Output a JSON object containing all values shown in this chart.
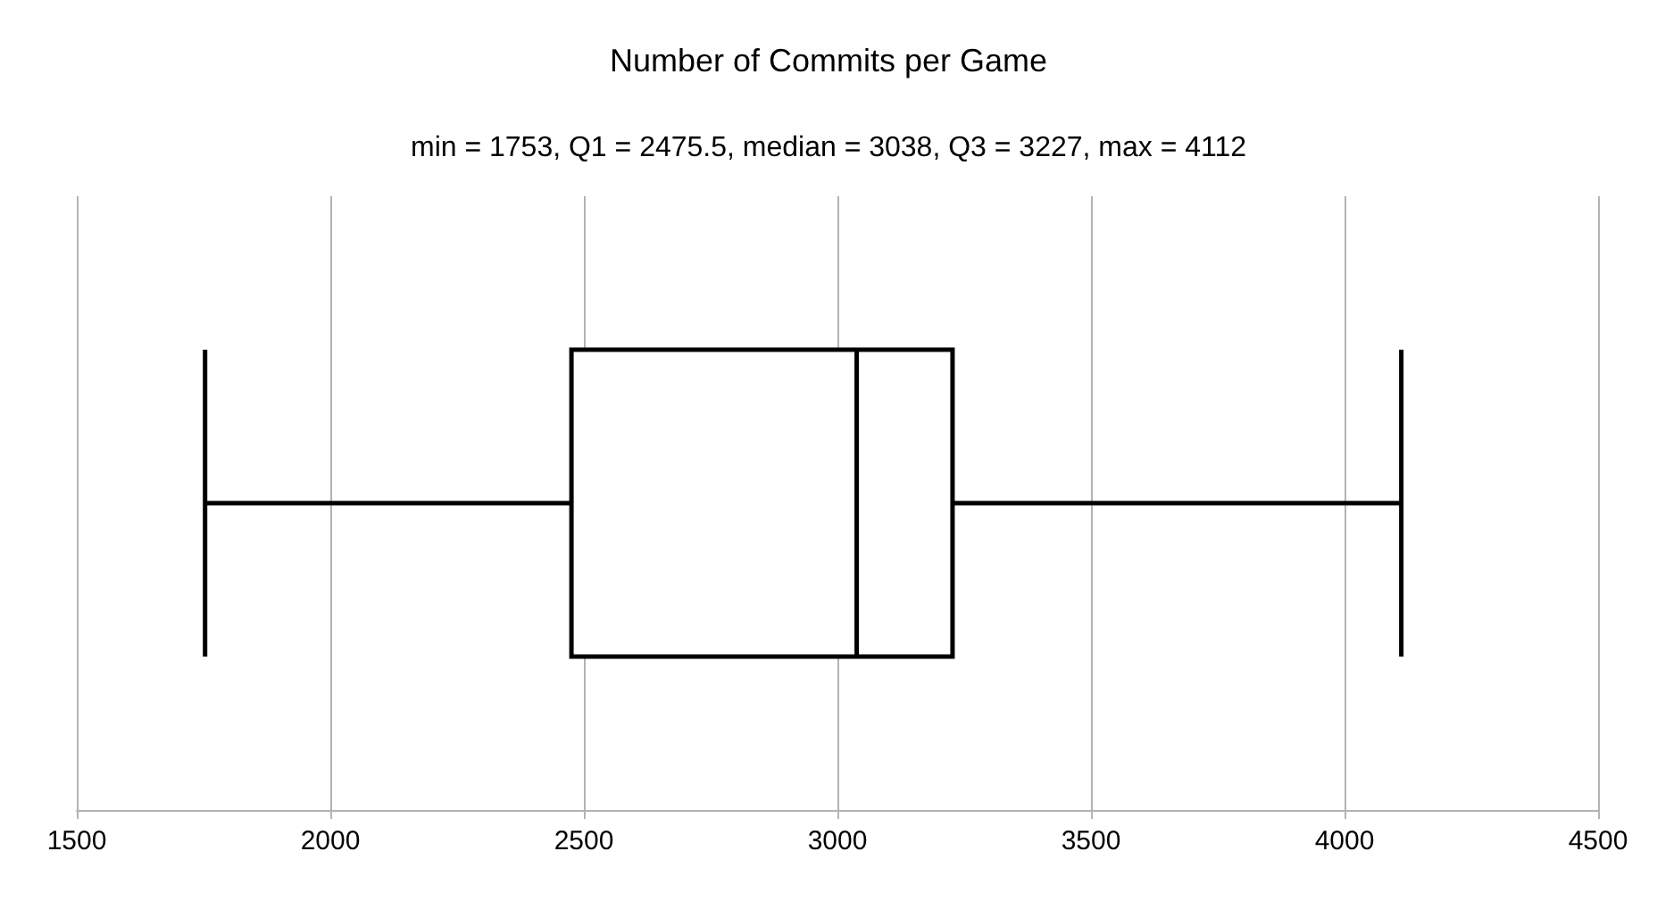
{
  "chart_data": {
    "type": "box",
    "title": "Number of Commits per Game",
    "subtitle": "min = 1753, Q1 = 2475.5, median = 3038, Q3 = 3227, max = 4112",
    "orientation": "horizontal",
    "categories": [
      null
    ],
    "series": [
      {
        "color": "#000000",
        "boxes": [
          {
            "low": 1753,
            "q1": 2475.5,
            "median": 3038,
            "q3": 3227,
            "high": 4112
          }
        ]
      }
    ],
    "xlim": [
      1500,
      4500
    ],
    "xticks": [
      1500,
      2000,
      2500,
      3000,
      3500,
      4000,
      4500
    ],
    "grid": "x",
    "tick_labels": "x"
  }
}
